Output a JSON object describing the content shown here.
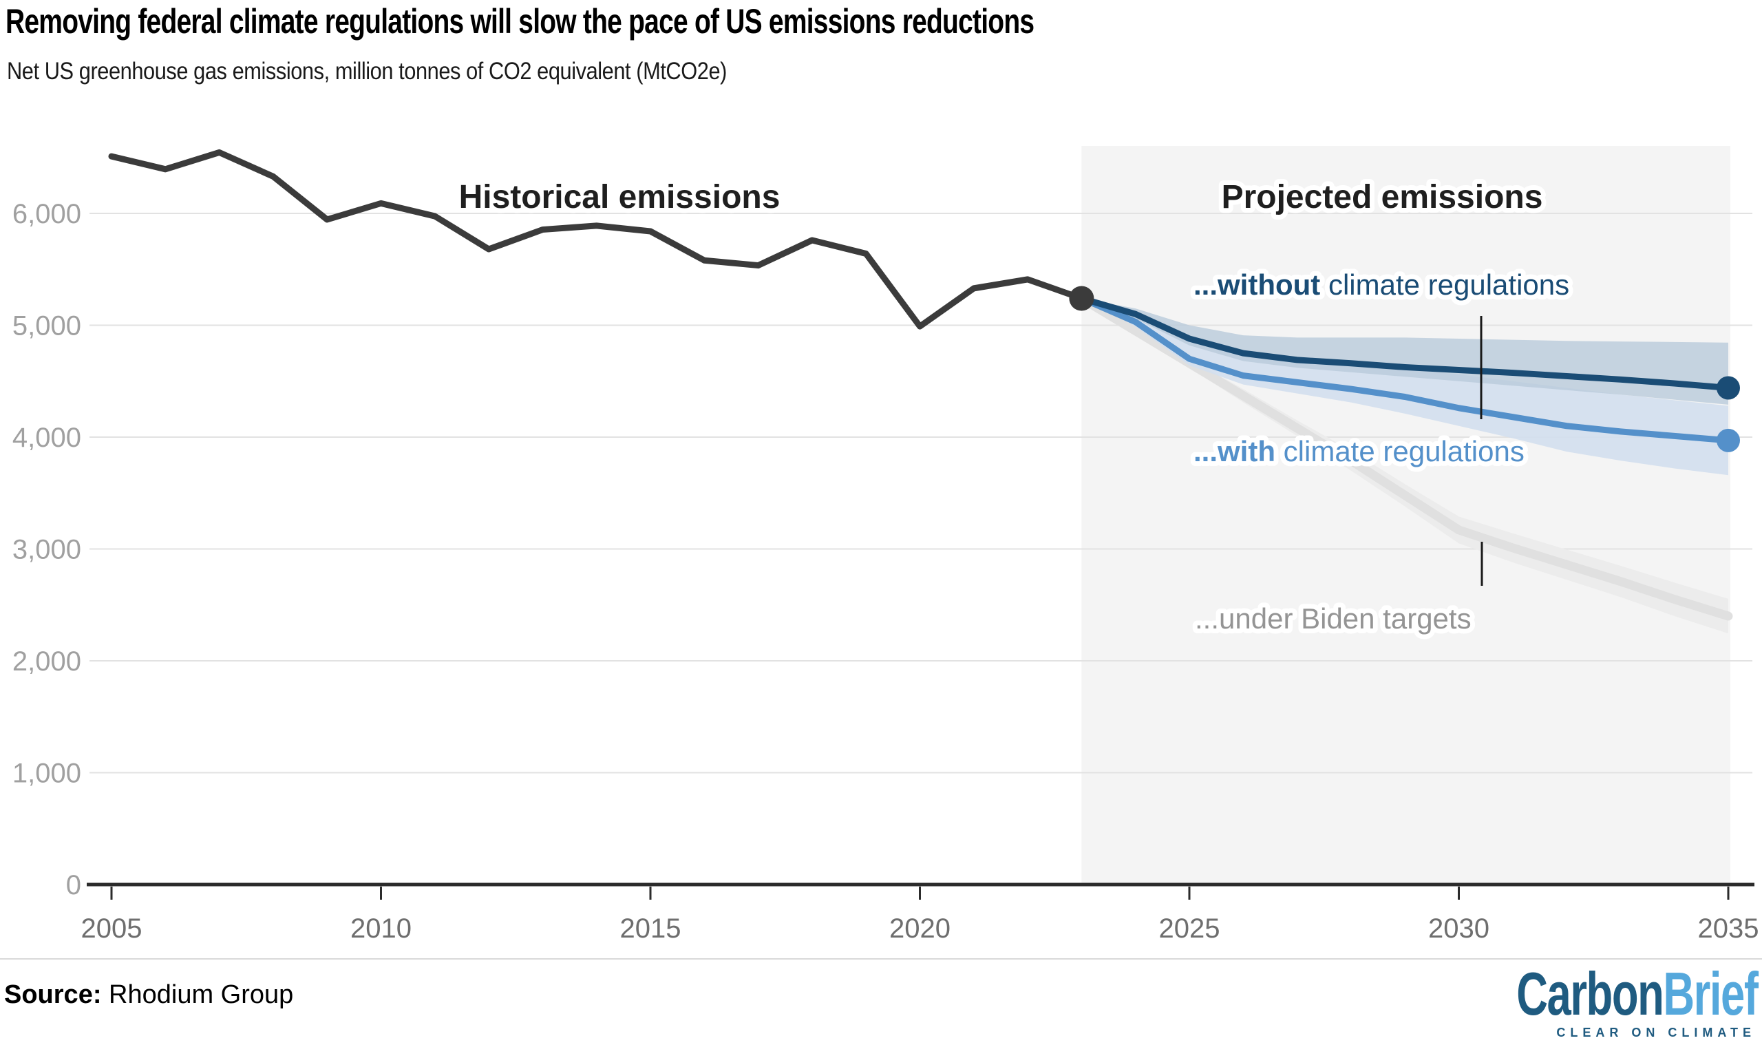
{
  "header": {
    "title": "Removing federal climate regulations will slow the pace of US emissions reductions",
    "subtitle": "Net US greenhouse gas emissions, million tonnes of CO2 equivalent (MtCO2e)"
  },
  "footer": {
    "source_label": "Source:",
    "source_value": " Rhodium Group",
    "logo": {
      "part1": "Carbon",
      "part2": "Brief",
      "tagline": "CLEAR ON CLIMATE"
    }
  },
  "colors": {
    "historical": "#3b3b3b",
    "without": "#1a4c75",
    "with": "#5490ca",
    "biden_line": "#e0e0e0",
    "biden_band": "#ececec",
    "without_band": "#b9cbdb",
    "with_band": "#d3dfee",
    "grid": "#e2e2e2",
    "axis": "#2b2b2b",
    "proj_bg": "#f4f4f4",
    "ylabel": "#a0a0a0",
    "xlabel": "#6e6e6e",
    "heading": "#1f1f1f",
    "biden_text": "#949494",
    "pointer": "#1a1a1a",
    "logo_dark": "#1f5b80",
    "logo_light": "#55a8dc"
  },
  "chart_data": {
    "type": "line",
    "title": "Removing federal climate regulations will slow the pace of US emissions reductions",
    "ylabel": "Net US greenhouse gas emissions, MtCO2e",
    "xlim": [
      2005,
      2035
    ],
    "ylim": [
      0,
      6600
    ],
    "grid": "horizontal",
    "legend": "inline-annotations",
    "historical": {
      "name": "Historical emissions",
      "x": [
        2005,
        2006,
        2007,
        2008,
        2009,
        2010,
        2011,
        2012,
        2013,
        2014,
        2015,
        2016,
        2017,
        2018,
        2019,
        2020,
        2021,
        2022,
        2023
      ],
      "values": [
        6510,
        6395,
        6545,
        6330,
        5945,
        6090,
        5975,
        5680,
        5855,
        5890,
        5840,
        5580,
        5535,
        5760,
        5640,
        4990,
        5330,
        5410,
        5240
      ]
    },
    "projection_years": [
      2023,
      2024,
      2025,
      2026,
      2027,
      2028,
      2029,
      2030,
      2031,
      2032,
      2033,
      2034,
      2035
    ],
    "series": [
      {
        "name": "without climate regulations",
        "values": [
          5240,
          5100,
          4880,
          4750,
          4690,
          4660,
          4625,
          4600,
          4575,
          4545,
          4515,
          4480,
          4440
        ],
        "band_upper": [
          5240,
          5150,
          5000,
          4910,
          4890,
          4890,
          4890,
          4880,
          4870,
          4860,
          4855,
          4850,
          4845
        ],
        "band_lower": [
          5240,
          5060,
          4820,
          4680,
          4620,
          4580,
          4540,
          4500,
          4460,
          4420,
          4380,
          4335,
          4290
        ]
      },
      {
        "name": "with climate regulations",
        "values": [
          5240,
          5030,
          4700,
          4550,
          4490,
          4430,
          4360,
          4260,
          4180,
          4100,
          4050,
          4010,
          3970
        ],
        "band_upper": [
          5240,
          5080,
          4900,
          4760,
          4700,
          4660,
          4610,
          4560,
          4500,
          4440,
          4380,
          4330,
          4280
        ],
        "band_lower": [
          5240,
          4990,
          4640,
          4470,
          4390,
          4310,
          4210,
          4100,
          3990,
          3870,
          3790,
          3720,
          3660
        ]
      },
      {
        "name": "under Biden targets",
        "values": [
          5240,
          4950,
          4660,
          4370,
          4080,
          3790,
          3480,
          3170,
          3010,
          2860,
          2710,
          2550,
          2400
        ],
        "band_upper": [
          5240,
          4980,
          4700,
          4430,
          4150,
          3880,
          3580,
          3290,
          3140,
          2995,
          2850,
          2700,
          2555
        ],
        "band_lower": [
          5240,
          4920,
          4620,
          4310,
          4010,
          3700,
          3380,
          3050,
          2880,
          2725,
          2570,
          2400,
          2245
        ]
      }
    ],
    "y_ticks": [
      {
        "v": 0,
        "label": "0"
      },
      {
        "v": 1000,
        "label": "1,000"
      },
      {
        "v": 2000,
        "label": "2,000"
      },
      {
        "v": 3000,
        "label": "3,000"
      },
      {
        "v": 4000,
        "label": "4,000"
      },
      {
        "v": 5000,
        "label": "5,000"
      },
      {
        "v": 6000,
        "label": "6,000"
      }
    ],
    "x_ticks": [
      {
        "year": 2005,
        "label": "2005"
      },
      {
        "year": 2010,
        "label": "2010"
      },
      {
        "year": 2015,
        "label": "2015"
      },
      {
        "year": 2020,
        "label": "2020"
      },
      {
        "year": 2025,
        "label": "2025"
      },
      {
        "year": 2030,
        "label": "2030"
      },
      {
        "year": 2035,
        "label": "2035"
      }
    ],
    "annotations": {
      "historical_heading": "Historical emissions",
      "projected_heading": "Projected emissions",
      "without_label": {
        "bold": "...without",
        "rest": " climate regulations"
      },
      "with_label": {
        "bold": "...with",
        "rest": " climate regulations"
      },
      "biden_label": "...under Biden targets"
    }
  }
}
